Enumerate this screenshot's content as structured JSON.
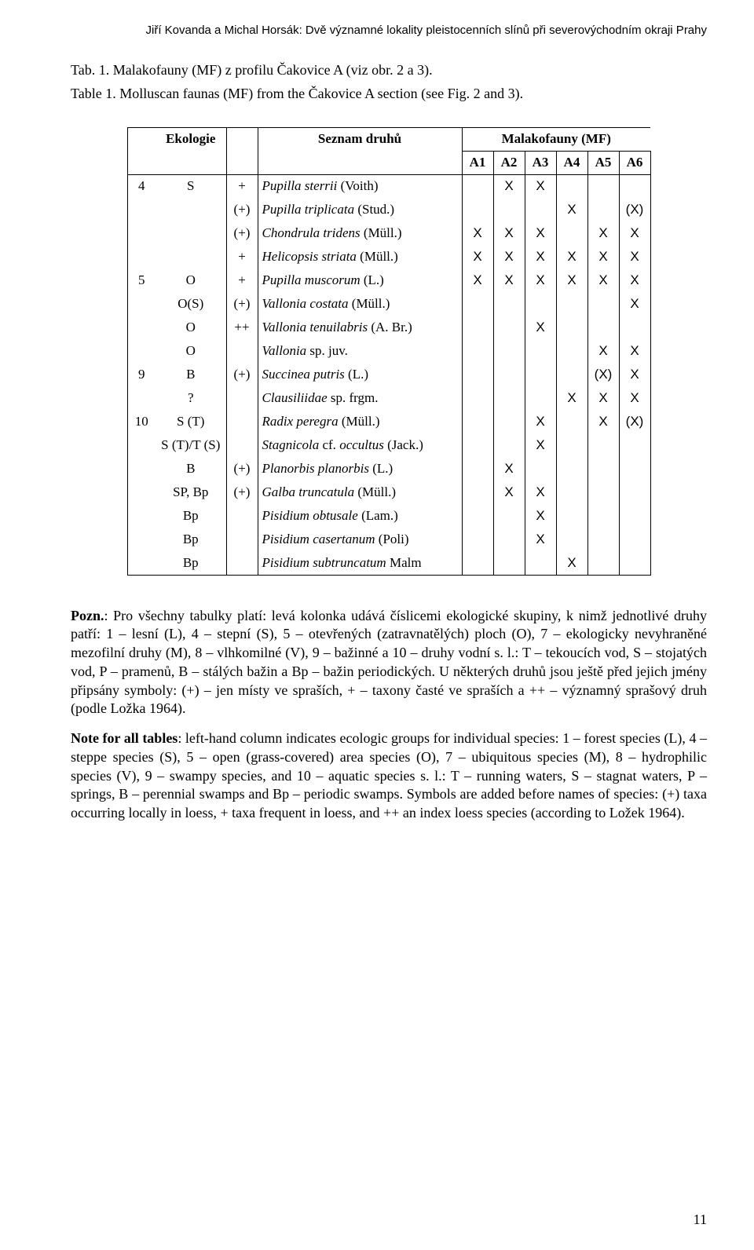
{
  "running_head": "Jiří Kovanda a Michal Horsák: Dvě významné lokality pleistocenních slínů při severovýchodním okraji Prahy",
  "caption_cz": "Tab. 1. Malakofauny (MF) z profilu Čakovice A (viz obr. 2 a 3).",
  "caption_en": "Table 1. Molluscan faunas (MF) from the Čakovice A section (see Fig. 2 and 3).",
  "hdr": {
    "ek": "Ekologie",
    "sz": "Seznam druhů",
    "mf": "Malakofauny (MF)"
  },
  "cols": [
    "A1",
    "A2",
    "A3",
    "A4",
    "A5",
    "A6"
  ],
  "rows": [
    {
      "a": "4",
      "b": "S",
      "c": "+",
      "d": "Pupilla sterrii",
      "dex": " (Voith)",
      "mf": [
        "",
        "X",
        "X",
        "",
        "",
        ""
      ]
    },
    {
      "a": "",
      "b": "",
      "c": "(+)",
      "d": "Pupilla triplicata",
      "dex": " (Stud.)",
      "mf": [
        "",
        "",
        "",
        "X",
        "",
        "(X)"
      ]
    },
    {
      "a": "",
      "b": "",
      "c": "(+)",
      "d": "Chondrula tridens",
      "dex": " (Müll.)",
      "mf": [
        "X",
        "X",
        "X",
        "",
        "X",
        "X"
      ]
    },
    {
      "a": "",
      "b": "",
      "c": "+",
      "d": "Helicopsis striata",
      "dex": " (Müll.)",
      "mf": [
        "X",
        "X",
        "X",
        "X",
        "X",
        "X"
      ]
    },
    {
      "a": "5",
      "b": "O",
      "c": "+",
      "d": "Pupilla muscorum",
      "dex": " (L.)",
      "mf": [
        "X",
        "X",
        "X",
        "X",
        "X",
        "X"
      ]
    },
    {
      "a": "",
      "b": "O(S)",
      "c": "(+)",
      "d": "Vallonia costata",
      "dex": " (Müll.)",
      "mf": [
        "",
        "",
        "",
        "",
        "",
        "X"
      ]
    },
    {
      "a": "",
      "b": "O",
      "c": "++",
      "d": "Vallonia tenuilabris",
      "dex": " (A. Br.)",
      "mf": [
        "",
        "",
        "X",
        "",
        "",
        ""
      ]
    },
    {
      "a": "",
      "b": "O",
      "c": "",
      "d": "Vallonia",
      "dex": " sp. juv.",
      "mf": [
        "",
        "",
        "",
        "",
        "X",
        "X"
      ]
    },
    {
      "a": "9",
      "b": "B",
      "c": "(+)",
      "d": "Succinea putris",
      "dex": " (L.)",
      "mf": [
        "",
        "",
        "",
        "",
        "(X)",
        "X"
      ]
    },
    {
      "a": "",
      "b": "?",
      "c": "",
      "d": "Clausiliidae",
      "dex": " sp. frgm.",
      "mf": [
        "",
        "",
        "",
        "X",
        "X",
        "X"
      ]
    },
    {
      "a": "10",
      "b": "S (T)",
      "c": "",
      "d": "Radix peregra",
      "dex": " (Müll.)",
      "mf": [
        "",
        "",
        "X",
        "",
        "X",
        "(X)"
      ]
    },
    {
      "a": "",
      "b": "S (T)/T (S)",
      "c": "",
      "d": "Stagnicola",
      "dex": " cf.",
      "d2": " occultus",
      "dex2": " (Jack.)",
      "mf": [
        "",
        "",
        "X",
        "",
        "",
        ""
      ]
    },
    {
      "a": "",
      "b": "B",
      "c": "(+)",
      "d": "Planorbis planorbis",
      "dex": " (L.)",
      "mf": [
        "",
        "X",
        "",
        "",
        "",
        ""
      ]
    },
    {
      "a": "",
      "b": "SP, Bp",
      "c": "(+)",
      "d": "Galba truncatula",
      "dex": " (Müll.)",
      "mf": [
        "",
        "X",
        "X",
        "",
        "",
        ""
      ]
    },
    {
      "a": "",
      "b": "Bp",
      "c": "",
      "d": "Pisidium obtusale",
      "dex": " (Lam.)",
      "mf": [
        "",
        "",
        "X",
        "",
        "",
        ""
      ]
    },
    {
      "a": "",
      "b": "Bp",
      "c": "",
      "d": "Pisidium casertanum",
      "dex": " (Poli)",
      "mf": [
        "",
        "",
        "X",
        "",
        "",
        ""
      ]
    },
    {
      "a": "",
      "b": "Bp",
      "c": "",
      "d": "Pisidium subtruncatum",
      "dex": " Malm",
      "mf": [
        "",
        "",
        "",
        "X",
        "",
        ""
      ]
    }
  ],
  "pozn_label": "Pozn.",
  "pozn_text": ": Pro všechny tabulky platí: levá kolonka udává číslicemi ekologické skupiny, k nimž jednotlivé druhy patří:\n1 – lesní (L), 4 – stepní (S), 5 – otevřených (zatravnatělých) ploch (O), 7 – ekologicky nevyhraněné mezofilní druhy (M), 8 – vlhkomilné (V), 9 – bažinné a 10 – druhy vodní s. l.: T – tekoucích vod, S – stojatých vod, P – pramenů, B – stálých bažin a Bp – bažin periodických. U některých druhů jsou ještě před jejich jmény připsány symboly: (+) – jen místy ve spraších, + – taxony časté ve spraších a ++ – významný sprašový druh (podle Ložka 1964).",
  "note_label": "Note for all tables",
  "note_text": ": left-hand column indicates ecologic groups for individual species:\n1 – forest species (L), 4 – steppe species (S), 5 – open (grass-covered) area species (O), 7 – ubiquitous species (M), 8 – hydrophilic species (V), 9 – swampy species, and 10 – aquatic species s. l.: T – running waters, S – stagnat waters, P – springs, B – perennial swamps and Bp – periodic swamps. Symbols are added before names of species: (+) taxa occurring locally in loess, + taxa frequent in loess, and ++ an index loess species (according to Ložek 1964).",
  "page_num": "11"
}
